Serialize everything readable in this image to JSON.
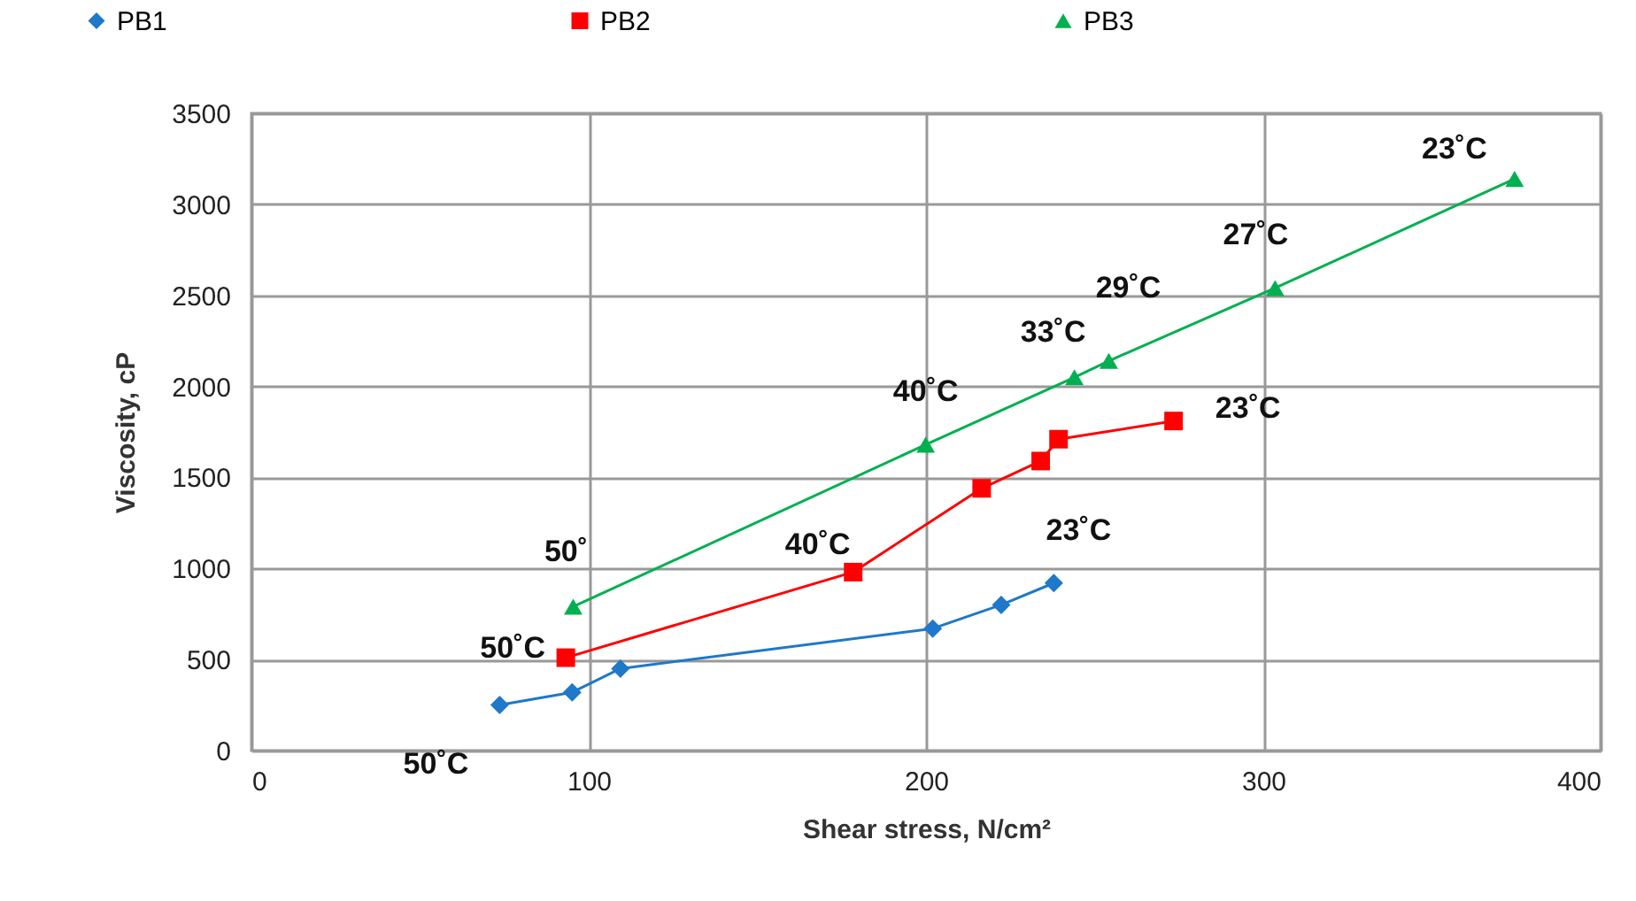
{
  "chart_data": {
    "type": "line",
    "xlabel": "Shear stress, N/cm²",
    "ylabel": "Viscosity, cP",
    "xlim": [
      0,
      400
    ],
    "xticks": [
      0,
      100,
      200,
      300,
      400
    ],
    "ylim": [
      0,
      3500
    ],
    "yticks": [
      0,
      500,
      1000,
      1500,
      2000,
      2500,
      3000,
      3500
    ],
    "grid": true,
    "legend": "top",
    "line_style": "solid",
    "series": [
      {
        "name": "PB1",
        "color": "#1f78c8",
        "marker": "diamond",
        "x": [
          73.6,
          95.1,
          109.4,
          202,
          222.3,
          237.9
        ],
        "values": [
          250,
          320,
          450,
          670,
          800,
          920
        ]
      },
      {
        "name": "PB2",
        "color": "#ff0000",
        "marker": "square",
        "x": [
          93.2,
          178.4,
          216.5,
          234,
          239.3,
          273.4
        ],
        "values": [
          510,
          980,
          1440,
          1590,
          1710,
          1810
        ]
      },
      {
        "name": "PB3",
        "color": "#00b050",
        "marker": "triangle",
        "x": [
          95.4,
          199.9,
          244,
          254.2,
          303.5,
          374.5
        ],
        "values": [
          790,
          1680,
          2050,
          2140,
          2540,
          3140
        ]
      }
    ],
    "annotations": [
      {
        "text": "50˚C",
        "x": 73.6,
        "y": 245
      },
      {
        "text": "23˚C",
        "x": 237.9,
        "y": 924
      },
      {
        "text": "50˚C",
        "x": 93.2,
        "y": 510
      },
      {
        "text": "40˚C",
        "x": 178.4,
        "y": 982
      },
      {
        "text": "23˚C",
        "x": 273.4,
        "y": 1808
      },
      {
        "text": "50˚",
        "x": 95.4,
        "y": 788
      },
      {
        "text": "40˚C",
        "x": 199.9,
        "y": 1678
      },
      {
        "text": "33˚C",
        "x": 244,
        "y": 2050
      },
      {
        "text": "29˚C",
        "x": 254.2,
        "y": 2141
      },
      {
        "text": "27˚C",
        "x": 303.5,
        "y": 2536
      },
      {
        "text": "23˚C",
        "x": 374.5,
        "y": 3144
      }
    ]
  }
}
